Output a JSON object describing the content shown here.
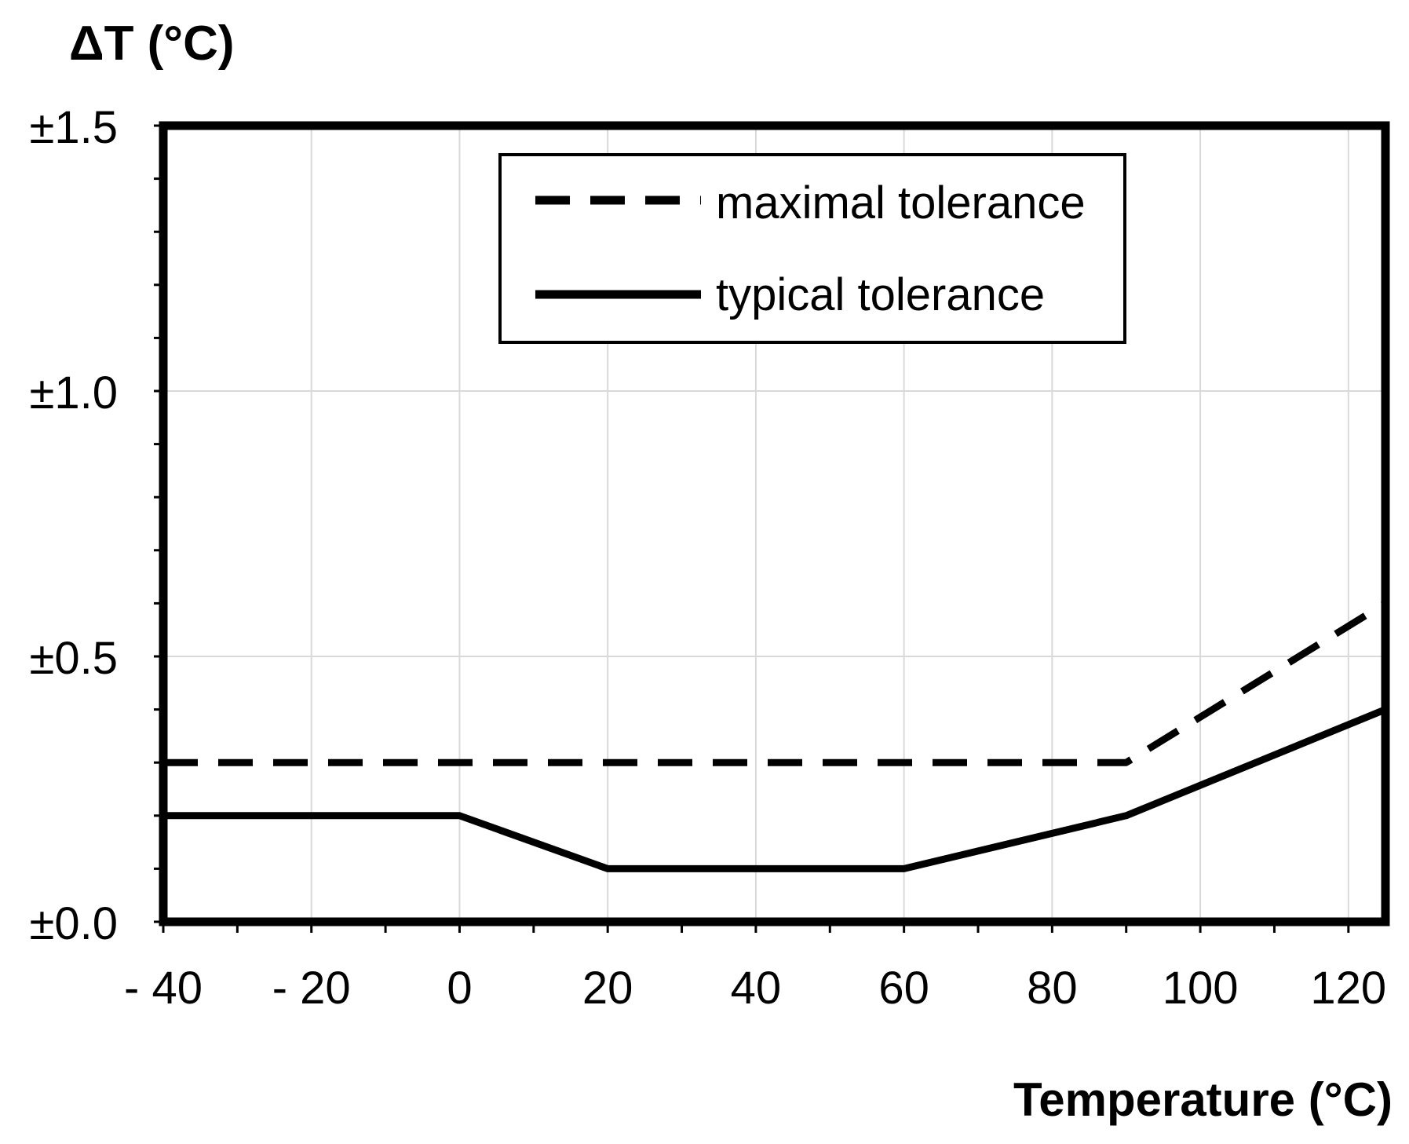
{
  "chart_data": {
    "type": "line",
    "title": "",
    "ylabel": "ΔT (°C)",
    "xlabel": "Temperature (°C)",
    "xlim": [
      -40,
      125
    ],
    "ylim": [
      0,
      1.5
    ],
    "x_ticks": [
      -40,
      -20,
      0,
      20,
      40,
      60,
      80,
      100,
      120
    ],
    "x_tick_labels": [
      "- 40",
      "- 20",
      "0",
      "20",
      "40",
      "60",
      "80",
      "100",
      "120"
    ],
    "y_ticks": [
      0,
      0.5,
      1.0,
      1.5
    ],
    "y_tick_labels": [
      "±0.0",
      "±0.5",
      "±1.0",
      "±1.5"
    ],
    "y_minor_step": 0.1,
    "x_minor_step": 10,
    "grid": true,
    "legend_position": "top-center",
    "series": [
      {
        "name": "maximal tolerance",
        "style": "dashed",
        "x": [
          -40,
          90,
          125
        ],
        "y": [
          0.3,
          0.3,
          0.6
        ]
      },
      {
        "name": "typical tolerance",
        "style": "solid",
        "x": [
          -40,
          0,
          20,
          60,
          90,
          125
        ],
        "y": [
          0.2,
          0.2,
          0.1,
          0.1,
          0.2,
          0.4
        ]
      }
    ]
  }
}
